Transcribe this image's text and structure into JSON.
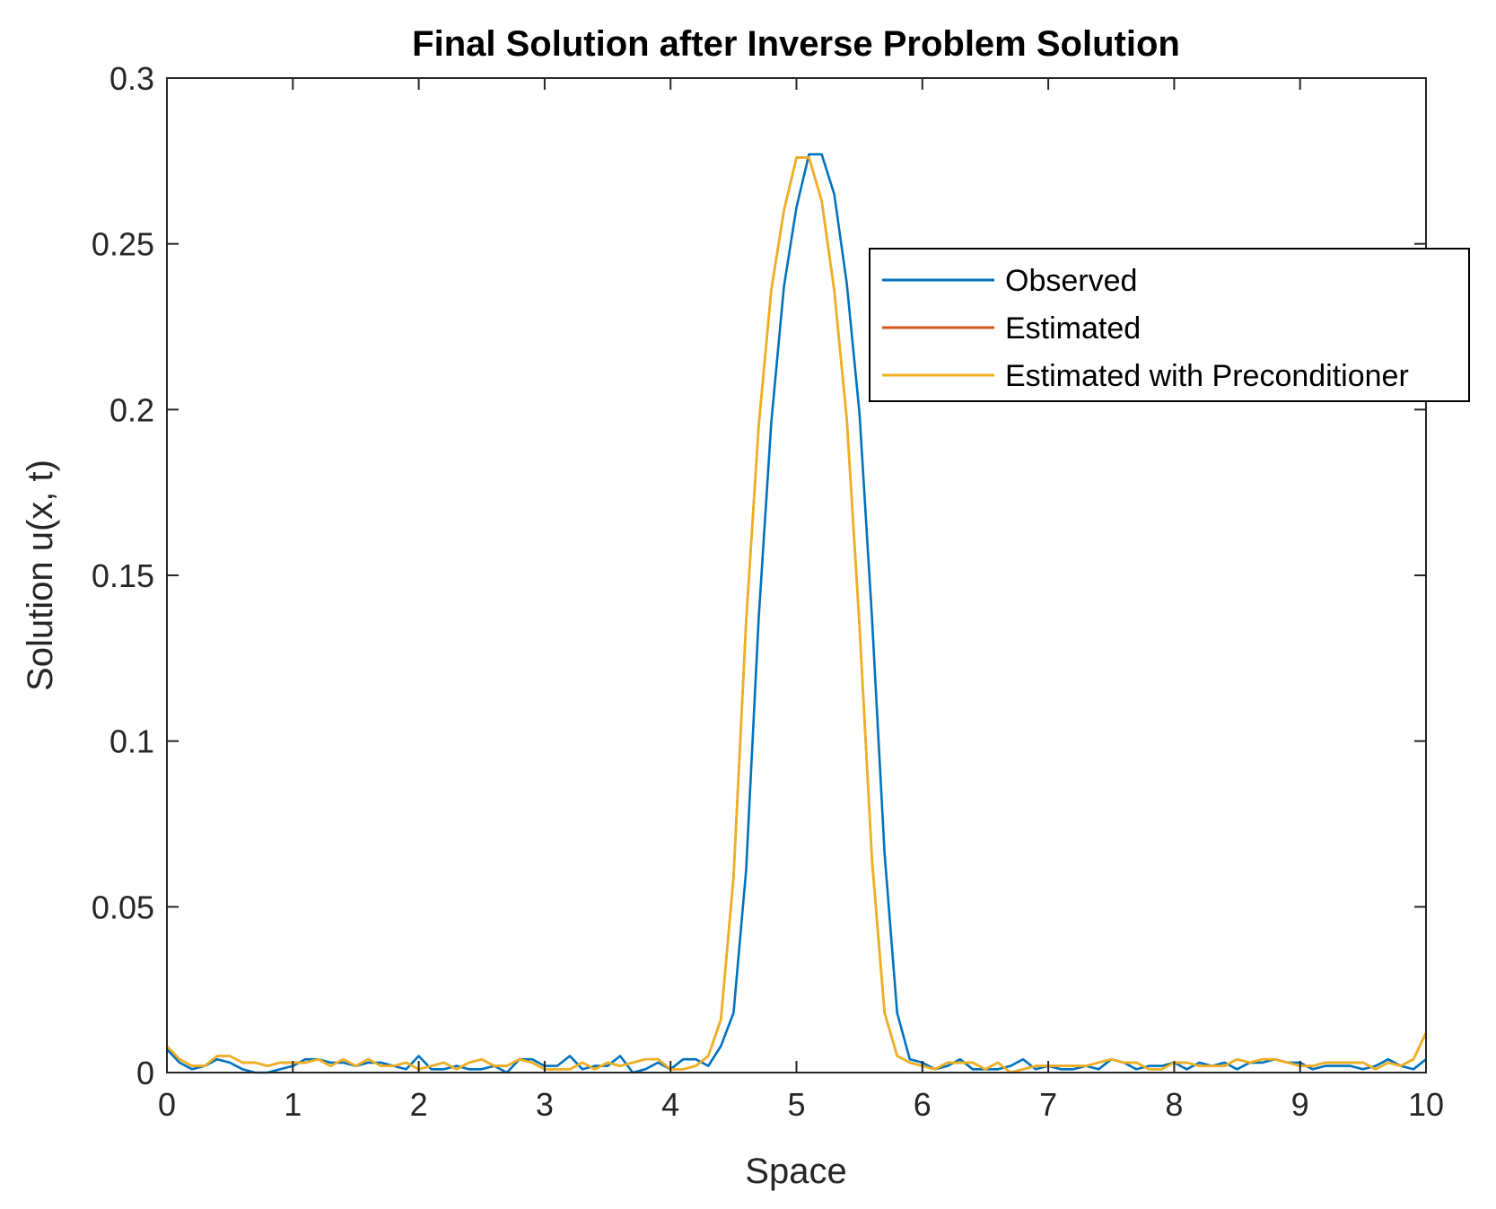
{
  "chart_data": {
    "type": "line",
    "title": "Final Solution after Inverse Problem Solution",
    "xlabel": "Space",
    "ylabel": "Solution u(x, t)",
    "xlim": [
      0,
      10
    ],
    "ylim": [
      0,
      0.3
    ],
    "xticks": [
      0,
      1,
      2,
      3,
      4,
      5,
      6,
      7,
      8,
      9,
      10
    ],
    "xtick_labels": [
      "0",
      "1",
      "2",
      "3",
      "4",
      "5",
      "6",
      "7",
      "8",
      "9",
      "10"
    ],
    "yticks": [
      0,
      0.05,
      0.1,
      0.15,
      0.2,
      0.25,
      0.3
    ],
    "ytick_labels": [
      "0",
      "0.05",
      "0.1",
      "0.15",
      "0.2",
      "0.25",
      "0.3"
    ],
    "grid": false,
    "legend_position": "top-right",
    "x": [
      0,
      0.1,
      0.2,
      0.3,
      0.4,
      0.5,
      0.6,
      0.7,
      0.8,
      0.9,
      1.0,
      1.1,
      1.2,
      1.3,
      1.4,
      1.5,
      1.6,
      1.7,
      1.8,
      1.9,
      2.0,
      2.1,
      2.2,
      2.3,
      2.4,
      2.5,
      2.6,
      2.7,
      2.8,
      2.9,
      3.0,
      3.1,
      3.2,
      3.3,
      3.4,
      3.5,
      3.6,
      3.7,
      3.8,
      3.9,
      4.0,
      4.1,
      4.2,
      4.3,
      4.4,
      4.5,
      4.6,
      4.7,
      4.8,
      4.9,
      5.0,
      5.1,
      5.2,
      5.3,
      5.4,
      5.5,
      5.6,
      5.7,
      5.8,
      5.9,
      6.0,
      6.1,
      6.2,
      6.3,
      6.4,
      6.5,
      6.6,
      6.7,
      6.8,
      6.9,
      7.0,
      7.1,
      7.2,
      7.3,
      7.4,
      7.5,
      7.6,
      7.7,
      7.8,
      7.9,
      8.0,
      8.1,
      8.2,
      8.3,
      8.4,
      8.5,
      8.6,
      8.7,
      8.8,
      8.9,
      9.0,
      9.1,
      9.2,
      9.3,
      9.4,
      9.5,
      9.6,
      9.7,
      9.8,
      9.9,
      10.0
    ],
    "series": [
      {
        "name": "Observed",
        "color": "#0072BD",
        "values": [
          0.007,
          0.003,
          0.001,
          0.002,
          0.004,
          0.003,
          0.001,
          0,
          0,
          0.001,
          0.002,
          0.004,
          0.004,
          0.003,
          0.003,
          0.002,
          0.003,
          0.003,
          0.002,
          0.001,
          0.005,
          0.001,
          0.001,
          0.002,
          0.001,
          0.001,
          0.002,
          0,
          0.004,
          0.004,
          0.002,
          0.002,
          0.005,
          0.001,
          0.002,
          0.002,
          0.005,
          0,
          0.001,
          0.003,
          0.001,
          0.004,
          0.004,
          0.002,
          0.008,
          0.018,
          0.061,
          0.137,
          0.196,
          0.237,
          0.261,
          0.277,
          0.277,
          0.265,
          0.238,
          0.199,
          0.137,
          0.066,
          0.018,
          0.004,
          0.003,
          0.001,
          0.002,
          0.004,
          0.001,
          0.001,
          0.001,
          0.002,
          0.004,
          0.001,
          0.002,
          0.001,
          0.001,
          0.002,
          0.001,
          0.004,
          0.003,
          0.001,
          0.002,
          0.002,
          0.003,
          0.001,
          0.003,
          0.002,
          0.003,
          0.001,
          0.003,
          0.003,
          0.004,
          0.003,
          0.003,
          0.001,
          0.002,
          0.002,
          0.002,
          0.001,
          0.002,
          0.004,
          0.002,
          0.001,
          0.004
        ]
      },
      {
        "name": "Estimated",
        "color": "#D95319",
        "values": [
          0.008,
          0.004,
          0.002,
          0.002,
          0.005,
          0.005,
          0.003,
          0.003,
          0.002,
          0.003,
          0.003,
          0.003,
          0.004,
          0.002,
          0.004,
          0.002,
          0.004,
          0.002,
          0.002,
          0.003,
          0.001,
          0.002,
          0.003,
          0.001,
          0.003,
          0.004,
          0.002,
          0.002,
          0.004,
          0.003,
          0.001,
          0.001,
          0.001,
          0.003,
          0.001,
          0.003,
          0.002,
          0.003,
          0.004,
          0.004,
          0.001,
          0.001,
          0.002,
          0.005,
          0.016,
          0.059,
          0.136,
          0.195,
          0.236,
          0.26,
          0.276,
          0.276,
          0.263,
          0.236,
          0.197,
          0.135,
          0.064,
          0.018,
          0.005,
          0.003,
          0.002,
          0.001,
          0.003,
          0.003,
          0.003,
          0.001,
          0.003,
          0,
          0.001,
          0.002,
          0.002,
          0.002,
          0.002,
          0.002,
          0.003,
          0.004,
          0.003,
          0.003,
          0.001,
          0.001,
          0.003,
          0.003,
          0.002,
          0.002,
          0.002,
          0.004,
          0.003,
          0.004,
          0.004,
          0.003,
          0.002,
          0.002,
          0.003,
          0.003,
          0.003,
          0.003,
          0.001,
          0.003,
          0.002,
          0.004,
          0.012
        ]
      },
      {
        "name": "Estimated with Preconditioner",
        "color": "#EDB120",
        "values": [
          0.008,
          0.004,
          0.002,
          0.002,
          0.005,
          0.005,
          0.003,
          0.003,
          0.002,
          0.003,
          0.003,
          0.003,
          0.004,
          0.002,
          0.004,
          0.002,
          0.004,
          0.002,
          0.002,
          0.003,
          0.001,
          0.002,
          0.003,
          0.001,
          0.003,
          0.004,
          0.002,
          0.002,
          0.004,
          0.003,
          0.001,
          0.001,
          0.001,
          0.003,
          0.001,
          0.003,
          0.002,
          0.003,
          0.004,
          0.004,
          0.001,
          0.001,
          0.002,
          0.005,
          0.016,
          0.059,
          0.136,
          0.195,
          0.236,
          0.26,
          0.276,
          0.276,
          0.263,
          0.236,
          0.197,
          0.135,
          0.064,
          0.018,
          0.005,
          0.003,
          0.002,
          0.001,
          0.003,
          0.003,
          0.003,
          0.001,
          0.003,
          0,
          0.001,
          0.002,
          0.002,
          0.002,
          0.002,
          0.002,
          0.003,
          0.004,
          0.003,
          0.003,
          0.001,
          0.001,
          0.003,
          0.003,
          0.002,
          0.002,
          0.002,
          0.004,
          0.003,
          0.004,
          0.004,
          0.003,
          0.002,
          0.002,
          0.003,
          0.003,
          0.003,
          0.003,
          0.001,
          0.003,
          0.002,
          0.004,
          0.012
        ]
      }
    ]
  }
}
